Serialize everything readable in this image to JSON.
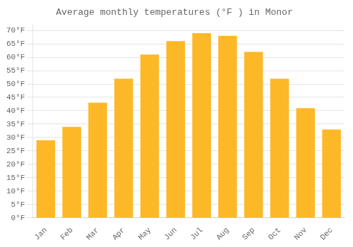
{
  "chart_data": {
    "type": "bar",
    "title": "Average monthly temperatures (°F ) in Monor",
    "categories": [
      "Jan",
      "Feb",
      "Mar",
      "Apr",
      "May",
      "Jun",
      "Jul",
      "Aug",
      "Sep",
      "Oct",
      "Nov",
      "Dec"
    ],
    "values": [
      29,
      34,
      43,
      52,
      61,
      66,
      69,
      68,
      62,
      52,
      41,
      33
    ],
    "color": "#FDB827",
    "ylim": [
      0,
      72
    ],
    "yticks": [
      {
        "value": 0,
        "label": "0°F"
      },
      {
        "value": 5,
        "label": "5°F"
      },
      {
        "value": 10,
        "label": "10°F"
      },
      {
        "value": 15,
        "label": "15°F"
      },
      {
        "value": 20,
        "label": "20°F"
      },
      {
        "value": 25,
        "label": "25°F"
      },
      {
        "value": 30,
        "label": "30°F"
      },
      {
        "value": 35,
        "label": "35°F"
      },
      {
        "value": 40,
        "label": "40°F"
      },
      {
        "value": 45,
        "label": "45°F"
      },
      {
        "value": 50,
        "label": "50°F"
      },
      {
        "value": 55,
        "label": "55°F"
      },
      {
        "value": 60,
        "label": "60°F"
      },
      {
        "value": 65,
        "label": "65°F"
      },
      {
        "value": 70,
        "label": "70°F"
      }
    ],
    "grid": true
  }
}
